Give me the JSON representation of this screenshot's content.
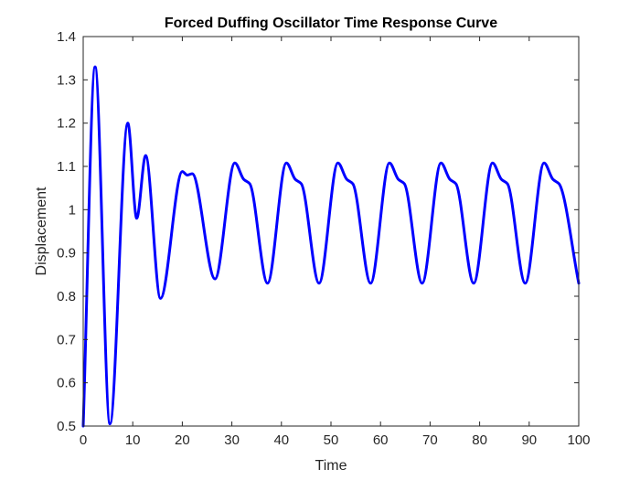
{
  "chart_data": {
    "type": "line",
    "title": "Forced Duffing Oscillator Time Response Curve",
    "xlabel": "Time",
    "ylabel": "Displacement",
    "xlim": [
      0,
      100
    ],
    "ylim": [
      0.5,
      1.4
    ],
    "xticks": [
      0,
      10,
      20,
      30,
      40,
      50,
      60,
      70,
      80,
      90,
      100
    ],
    "yticks": [
      0.5,
      0.6,
      0.7,
      0.8,
      0.9,
      1,
      1.1,
      1.2,
      1.3,
      1.4
    ],
    "grid": false,
    "line_color": "#0000ff",
    "series": [
      {
        "x": [
          0,
          2.4,
          5.4,
          9.0,
          10.8,
          12.6,
          15.6,
          20.0,
          21.0,
          22.0,
          26.6,
          30.6,
          32.4,
          33.6,
          37.2,
          41.0,
          42.8,
          44.0,
          47.6,
          51.4,
          53.2,
          54.4,
          58.0,
          61.8,
          63.6,
          64.8,
          68.4,
          72.2,
          74.0,
          75.2,
          78.8,
          82.6,
          84.4,
          85.6,
          89.2,
          93.0,
          94.8,
          96.0,
          100
        ],
        "y": [
          0.5,
          1.33,
          0.505,
          1.2,
          0.98,
          1.125,
          0.795,
          1.088,
          1.08,
          1.083,
          0.84,
          1.108,
          1.07,
          1.06,
          0.83,
          1.108,
          1.07,
          1.06,
          0.83,
          1.108,
          1.07,
          1.06,
          0.83,
          1.108,
          1.07,
          1.06,
          0.83,
          1.108,
          1.07,
          1.06,
          0.83,
          1.108,
          1.07,
          1.06,
          0.83,
          1.108,
          1.07,
          1.06,
          0.83
        ]
      }
    ]
  }
}
